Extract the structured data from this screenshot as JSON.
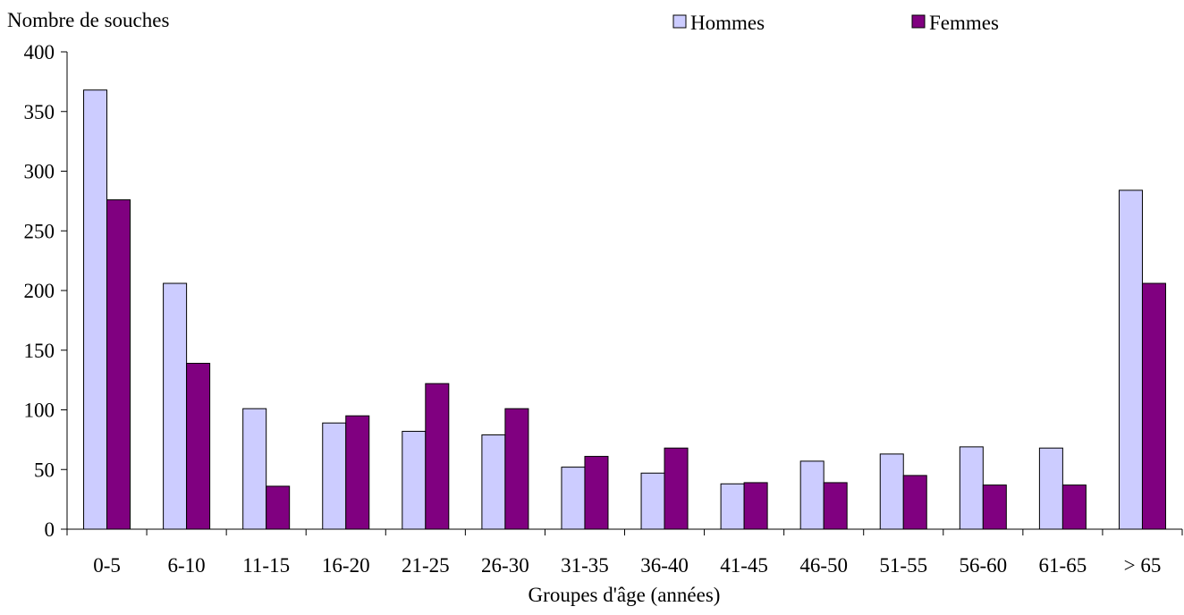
{
  "chart_data": {
    "type": "bar",
    "title": "",
    "ylabel": "Nombre de souches",
    "xlabel": "Groupes d'âge (années)",
    "ylim": [
      0,
      400
    ],
    "yticks": [
      0,
      50,
      100,
      150,
      200,
      250,
      300,
      350,
      400
    ],
    "categories": [
      "0-5",
      "6-10",
      "11-15",
      "16-20",
      "21-25",
      "26-30",
      "31-35",
      "36-40",
      "41-45",
      "46-50",
      "51-55",
      "56-60",
      "61-65",
      "> 65"
    ],
    "series": [
      {
        "name": "Hommes",
        "color": "#ccccff",
        "values": [
          368,
          206,
          101,
          89,
          82,
          79,
          52,
          47,
          38,
          57,
          63,
          69,
          68,
          284
        ]
      },
      {
        "name": "Femmes",
        "color": "#800080",
        "values": [
          276,
          139,
          36,
          95,
          122,
          101,
          61,
          68,
          39,
          39,
          45,
          37,
          37,
          206
        ]
      }
    ],
    "grid": false,
    "legend_position": "top-right"
  }
}
